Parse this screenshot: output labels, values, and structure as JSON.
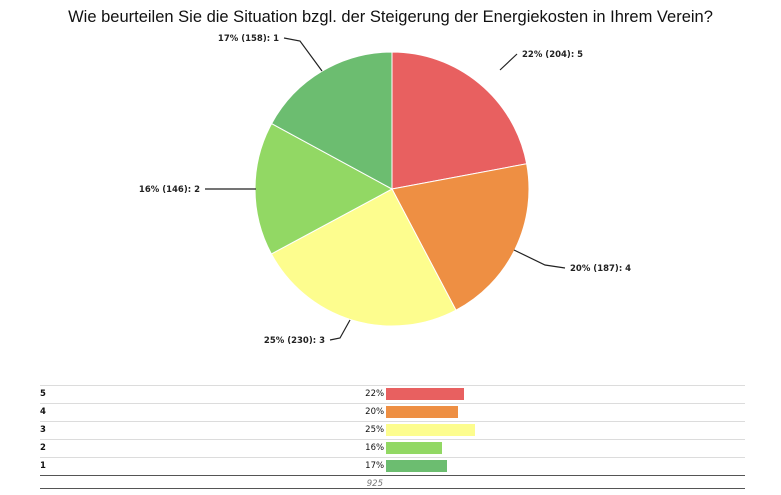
{
  "chart_data": {
    "type": "pie",
    "title": "Wie beurteilen Sie die Situation bzgl. der Steigerung der Energiekosten in Ihrem Verein?",
    "categories": [
      "5",
      "4",
      "3",
      "2",
      "1"
    ],
    "values": [
      204,
      187,
      230,
      146,
      158
    ],
    "percentages": [
      "22%",
      "20%",
      "25%",
      "16%",
      "17%"
    ],
    "colors": [
      "#e86060",
      "#ee8f43",
      "#fdfd8e",
      "#92d864",
      "#6cbd70"
    ],
    "slice_labels": [
      "22% (204): 5",
      "20% (187): 4",
      "25% (230): 3",
      "16% (146): 2",
      "17% (158): 1"
    ],
    "total": 925
  }
}
